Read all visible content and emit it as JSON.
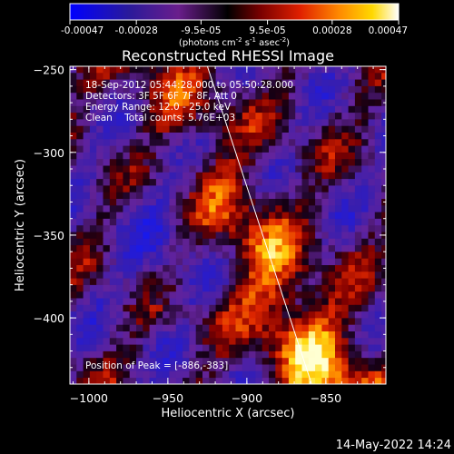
{
  "colorbar": {
    "ticks": [
      "-0.00047",
      "-0.00028",
      "-9.5e-05",
      "9.5e-05",
      "0.00028",
      "0.00047"
    ],
    "tick_values": [
      -0.00047,
      -0.00028,
      -9.5e-05,
      9.5e-05,
      0.00028,
      0.00047
    ],
    "range": [
      -0.00047,
      0.00047
    ],
    "unit_parts": [
      "(photons cm",
      "-2",
      " s",
      "-1",
      " asec",
      "-2",
      ")"
    ]
  },
  "chart_data": {
    "type": "heatmap",
    "title": "Reconstructed RHESSI Image",
    "xlabel": "Heliocentric X (arcsec)",
    "ylabel": "Heliocentric Y (arcsec)",
    "xlim": [
      -1012,
      -812
    ],
    "ylim": [
      -440,
      -248
    ],
    "xticks": [
      -1000,
      -950,
      -900,
      -850
    ],
    "yticks": [
      -250,
      -300,
      -350,
      -400
    ],
    "xtick_labels": [
      "−1000",
      "−950",
      "−900",
      "−850"
    ],
    "ytick_labels": [
      "−250",
      "−300",
      "−350",
      "−400"
    ],
    "limb_line": [
      [
        -925,
        -248
      ],
      [
        -859,
        -440
      ]
    ],
    "peak": [
      -886,
      -383
    ],
    "annotations": [
      "18-Sep-2012 05:44:28.000 to 05:50:28.000",
      "Detectors: 3F 5F 6F 7F 8F, Att 0",
      "Energy Range: 12.0 - 25.0 keV",
      "Clean    Total counts: 5.76E+03"
    ],
    "peak_label": "Position of Peak = [-886,-383]"
  },
  "timestamp": "14-May-2022 14:24",
  "colors": {
    "background": "#000000",
    "text": "#ffffff",
    "limb": "#ffffff"
  }
}
